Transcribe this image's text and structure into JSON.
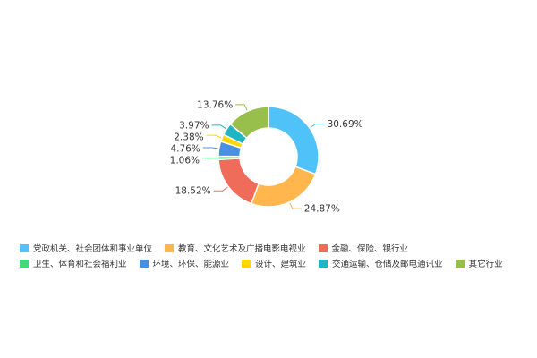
{
  "chart_data": {
    "type": "pie",
    "donut": true,
    "categories": [
      "党政机关、社会团体和事业单位",
      "教育、文化艺术及广播电影电视业",
      "金融、保险、银行业",
      "卫生、体育和社会福利业",
      "环境、环保、能源业",
      "设计、建筑业",
      "交通运输、仓储及邮电通讯业",
      "其它行业"
    ],
    "values": [
      30.69,
      24.87,
      18.52,
      1.06,
      4.76,
      2.38,
      3.97,
      13.76
    ],
    "labels": [
      "30.69%",
      "24.87%",
      "18.52%",
      "1.06%",
      "4.76%",
      "2.38%",
      "3.97%",
      "13.76%"
    ],
    "colors": [
      "#4fc3f7",
      "#ffb74d",
      "#ef6c5a",
      "#3ddc74",
      "#4a90e2",
      "#ffd60a",
      "#1fb5c2",
      "#98bf4b"
    ],
    "legend_position": "bottom"
  }
}
